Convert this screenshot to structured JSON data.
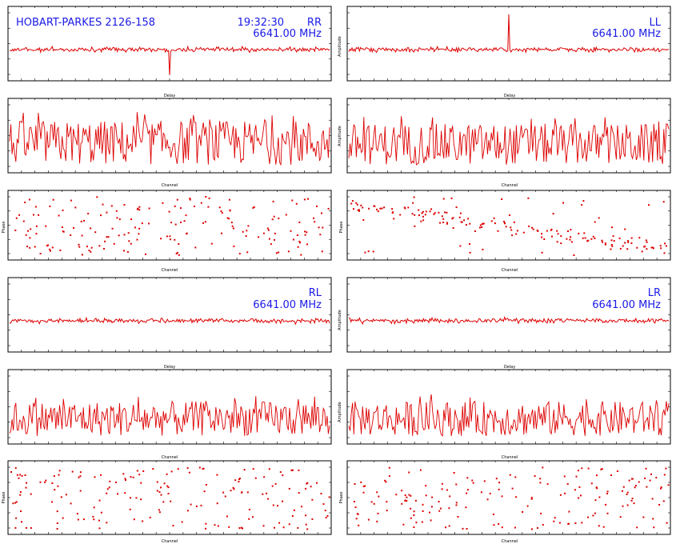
{
  "header": {
    "source": "HOBART-PARKES 2126-158",
    "time": "19:32:30",
    "frequency": "6641.00 MHz"
  },
  "colors": {
    "trace": "#dd0000",
    "label": "#1a1ae6",
    "frame": "#000000"
  },
  "chart_data": [
    {
      "panel": "RR-delay",
      "type": "line",
      "polarization": "RR",
      "frequency": "6641.00 MHz",
      "xlabel": "Delay",
      "ylabel": "",
      "xlim": [
        -320,
        320
      ],
      "ylim": [
        -2,
        8
      ],
      "features": "noise trace about baseline ~4 with a single downward spike near zero delay"
    },
    {
      "panel": "LL-delay",
      "type": "line",
      "polarization": "LL",
      "frequency": "6641.00 MHz",
      "xlabel": "Delay",
      "ylabel": "Amplitude",
      "xlim": [
        -320,
        320
      ],
      "ylim": [
        -2,
        8
      ],
      "features": "noise trace about baseline ~4 with a strong upward fringe peak near zero delay"
    },
    {
      "panel": "RR-channel",
      "type": "line",
      "xlabel": "Channel",
      "ylabel": "",
      "xlim": [
        0,
        256
      ],
      "ylim": [
        0,
        3
      ],
      "features": "noisy amplitude spectrum between ~1 and ~2.5"
    },
    {
      "panel": "LL-channel",
      "type": "line",
      "xlabel": "Channel",
      "ylabel": "Amplitude",
      "xlim": [
        0,
        256
      ],
      "ylim": [
        0,
        3
      ],
      "features": "noisy amplitude spectrum between ~1 and ~2.7"
    },
    {
      "panel": "RR-phase",
      "type": "scatter",
      "xlabel": "Channel",
      "ylabel": "Phase",
      "xlim": [
        0,
        256
      ],
      "ylim": [
        -180,
        180
      ],
      "features": "phases scattered uniformly (no coherent trend)"
    },
    {
      "panel": "LL-phase",
      "type": "scatter",
      "xlabel": "Channel",
      "ylabel": "Phase",
      "xlim": [
        0,
        256
      ],
      "ylim": [
        -180,
        180
      ],
      "features": "phases show a sloping trend from upper-left to lower-right"
    },
    {
      "panel": "RL-delay",
      "type": "line",
      "polarization": "RL",
      "frequency": "6641.00 MHz",
      "xlabel": "Delay",
      "ylabel": "",
      "xlim": [
        -320,
        320
      ],
      "ylim": [
        -2,
        8
      ],
      "features": "noise-only trace about baseline ~4"
    },
    {
      "panel": "LR-delay",
      "type": "line",
      "polarization": "LR",
      "frequency": "6641.00 MHz",
      "xlabel": "Delay",
      "ylabel": "Amplitude",
      "xlim": [
        -320,
        320
      ],
      "ylim": [
        -2,
        8
      ],
      "features": "noise-only trace about baseline ~4"
    },
    {
      "panel": "RL-channel",
      "type": "line",
      "xlabel": "Channel",
      "ylabel": "",
      "xlim": [
        0,
        256
      ],
      "ylim": [
        0,
        3
      ],
      "features": "noisy amplitude spectrum between ~0.5 and ~2"
    },
    {
      "panel": "LR-channel",
      "type": "line",
      "xlabel": "Channel",
      "ylabel": "Amplitude",
      "xlim": [
        0,
        256
      ],
      "ylim": [
        0,
        3
      ],
      "features": "noisy amplitude spectrum between ~0.5 and ~2"
    },
    {
      "panel": "RL-phase",
      "type": "scatter",
      "xlabel": "Channel",
      "ylabel": "Phase",
      "xlim": [
        0,
        256
      ],
      "ylim": [
        -180,
        180
      ],
      "features": "phases scattered uniformly"
    },
    {
      "panel": "LR-phase",
      "type": "scatter",
      "xlabel": "Channel",
      "ylabel": "Phase",
      "xlim": [
        0,
        256
      ],
      "ylim": [
        -180,
        180
      ],
      "features": "phases scattered uniformly"
    }
  ]
}
